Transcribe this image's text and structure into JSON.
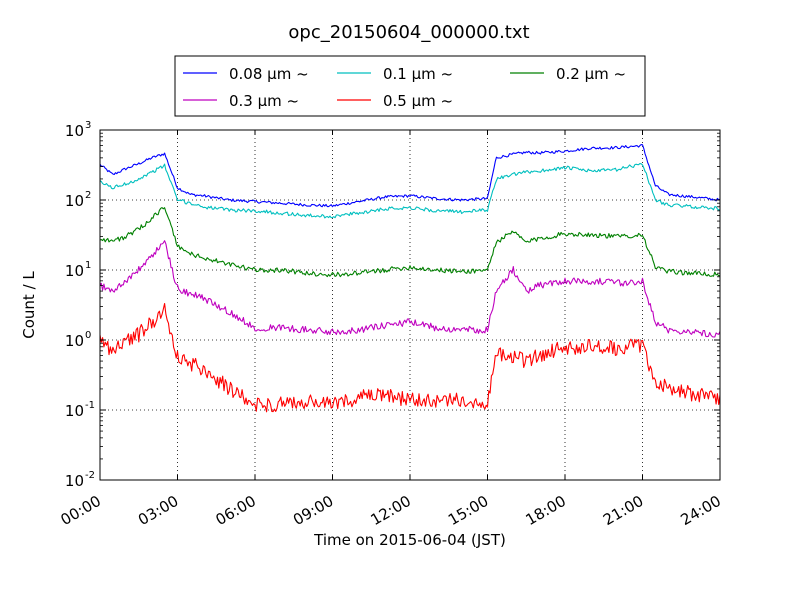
{
  "chart_data": {
    "type": "line",
    "title": "opc_20150604_000000.txt",
    "xlabel": "Time on 2015-06-04 (JST)",
    "ylabel": "Count / L",
    "y_scale": "log",
    "ylim": [
      0.01,
      1000
    ],
    "xlim": [
      "00:00",
      "24:00"
    ],
    "grid": true,
    "legend_position": "top-center",
    "x_tick_labels": [
      "00:00",
      "03:00",
      "06:00",
      "09:00",
      "12:00",
      "15:00",
      "18:00",
      "21:00",
      "24:00"
    ],
    "y_tick_labels": [
      {
        "base": "10",
        "exp": "-2"
      },
      {
        "base": "10",
        "exp": "-1"
      },
      {
        "base": "10",
        "exp": "0"
      },
      {
        "base": "10",
        "exp": "1"
      },
      {
        "base": "10",
        "exp": "2"
      },
      {
        "base": "10",
        "exp": "3"
      }
    ],
    "x": [
      "00:00",
      "00:30",
      "01:00",
      "01:30",
      "02:00",
      "02:30",
      "03:00",
      "03:30",
      "04:00",
      "05:00",
      "06:00",
      "07:00",
      "08:00",
      "09:00",
      "10:00",
      "11:00",
      "12:00",
      "13:00",
      "14:00",
      "15:00",
      "15:20",
      "16:00",
      "16:30",
      "17:00",
      "18:00",
      "19:00",
      "20:00",
      "20:30",
      "21:00",
      "21:30",
      "22:00",
      "23:00",
      "24:00"
    ],
    "series": [
      {
        "name": "0.08 μm ~",
        "color": "#0000ff",
        "values": [
          320,
          230,
          280,
          330,
          400,
          460,
          150,
          120,
          115,
          100,
          95,
          90,
          85,
          82,
          95,
          110,
          115,
          105,
          100,
          105,
          400,
          450,
          480,
          470,
          500,
          550,
          560,
          580,
          600,
          160,
          120,
          110,
          100
        ]
      },
      {
        "name": "0.1 μm ~",
        "color": "#00bfbf",
        "values": [
          180,
          150,
          170,
          200,
          250,
          310,
          100,
          90,
          80,
          72,
          70,
          65,
          60,
          58,
          65,
          75,
          78,
          70,
          68,
          72,
          200,
          230,
          250,
          260,
          290,
          260,
          270,
          300,
          330,
          100,
          85,
          80,
          75
        ]
      },
      {
        "name": "0.2 μm ~",
        "color": "#008000",
        "values": [
          28,
          26,
          30,
          38,
          55,
          80,
          22,
          17,
          15,
          12,
          10,
          10,
          9,
          8.5,
          9,
          10,
          11,
          10,
          9.5,
          10,
          25,
          35,
          25,
          28,
          33,
          32,
          30,
          31,
          32,
          11,
          9.5,
          9,
          8.5
        ]
      },
      {
        "name": "0.3 μm ~",
        "color": "#bf00bf",
        "values": [
          6,
          5,
          7,
          10,
          16,
          25,
          5.5,
          4.5,
          4,
          2.5,
          1.5,
          1.5,
          1.4,
          1.3,
          1.4,
          1.6,
          1.8,
          1.5,
          1.4,
          1.4,
          5,
          10,
          5,
          6,
          7,
          7,
          6.5,
          6.5,
          7,
          1.8,
          1.4,
          1.3,
          1.2
        ]
      },
      {
        "name": "0.5 μm ~",
        "color": "#ff0000",
        "values": [
          1.0,
          0.7,
          1.0,
          1.2,
          1.8,
          2.8,
          0.55,
          0.45,
          0.4,
          0.2,
          0.12,
          0.12,
          0.13,
          0.12,
          0.15,
          0.16,
          0.14,
          0.13,
          0.14,
          0.13,
          0.6,
          0.6,
          0.5,
          0.6,
          0.8,
          0.8,
          0.75,
          0.8,
          0.85,
          0.25,
          0.2,
          0.17,
          0.15
        ]
      }
    ]
  }
}
